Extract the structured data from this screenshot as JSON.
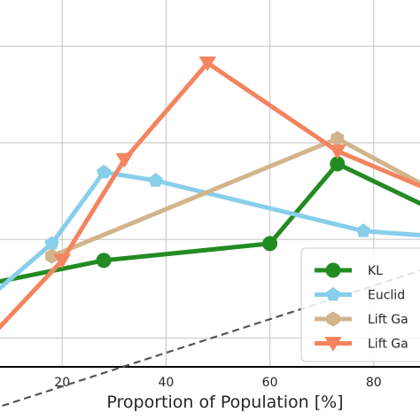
{
  "chart_data": {
    "type": "line",
    "title": "",
    "xlabel": "Proportion of Population [%]",
    "ylabel": "",
    "xlim": [
      0,
      100
    ],
    "ylim": [
      0,
      1
    ],
    "grid": true,
    "legend_position": "lower-right",
    "x_ticks": [
      20,
      40,
      60,
      80
    ],
    "y_ticks": [
      0.195,
      0.43,
      0.66,
      0.89
    ],
    "series": [
      {
        "name": "KL",
        "color": "#228b22",
        "marker": "circle",
        "x": [
          0,
          4,
          28,
          60,
          73,
          100
        ],
        "y": [
          0.13,
          0.32,
          0.38,
          0.42,
          0.61,
          0.45
        ]
      },
      {
        "name": "Euclid",
        "color": "#87ceeb",
        "marker": "pentagon",
        "x": [
          1,
          18,
          28,
          38,
          78,
          100
        ],
        "y": [
          0.24,
          0.42,
          0.59,
          0.57,
          0.45,
          0.43
        ]
      },
      {
        "name": "Lift Ga",
        "color": "#d2b48c",
        "marker": "hexagon",
        "x": [
          18,
          73,
          100
        ],
        "y": [
          0.39,
          0.67,
          0.49
        ]
      },
      {
        "name": "Lift Ga",
        "color": "#f4845f",
        "marker": "triangle-down",
        "x": [
          -5,
          20,
          32,
          48,
          73,
          100
        ],
        "y": [
          0.05,
          0.38,
          0.62,
          0.85,
          0.64,
          0.5
        ]
      },
      {
        "name": "",
        "color": "#555555",
        "marker": "none",
        "linestyle": "dashed",
        "x": [
          0,
          100
        ],
        "y": [
          0,
          0.4
        ]
      }
    ],
    "legend": [
      "KL",
      "Euclid",
      "Lift Ga",
      "Lift Ga"
    ]
  }
}
